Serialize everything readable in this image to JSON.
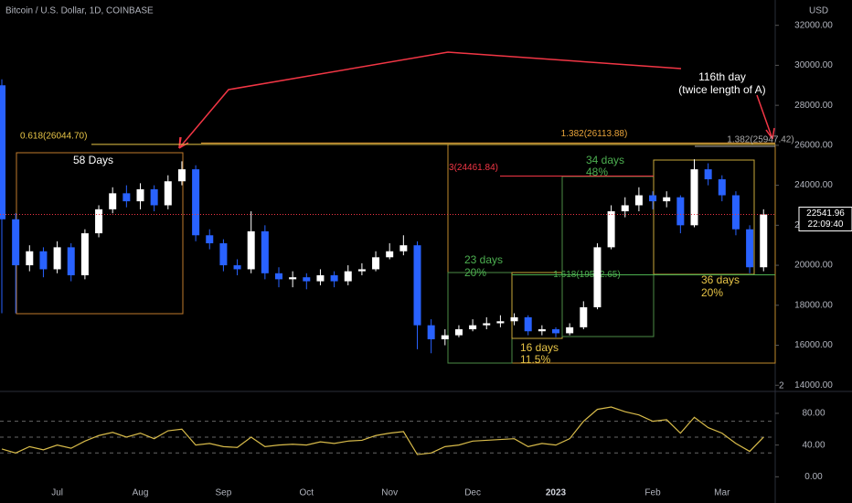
{
  "chart_data": [
    {
      "type": "candlestick",
      "title": "Bitcoin / U.S. Dollar, 1D, COINBASE",
      "currency": "USD",
      "categories": [
        null,
        null,
        null,
        null,
        "Jul",
        null,
        null,
        null,
        null,
        null,
        "Aug",
        null,
        null,
        null,
        null,
        null,
        "Sep",
        null,
        null,
        null,
        null,
        null,
        "Oct",
        null,
        null,
        null,
        null,
        null,
        "Nov",
        null,
        null,
        null,
        null,
        null,
        "Dec",
        null,
        null,
        null,
        null,
        null,
        "2023",
        null,
        null,
        null,
        null,
        null,
        null,
        "Feb",
        null,
        null,
        null,
        null,
        "Mar",
        null,
        null,
        null
      ],
      "open": [
        29000,
        22300,
        20000,
        20700,
        19800,
        20900,
        19500,
        21600,
        22800,
        23600,
        23200,
        23800,
        23000,
        24200,
        24800,
        21500,
        21100,
        20000,
        19800,
        21700,
        19600,
        19300,
        19400,
        19200,
        19500,
        19200,
        19700,
        19800,
        20400,
        20700,
        21000,
        17000,
        16300,
        16500,
        16800,
        17000,
        17100,
        17200,
        17400,
        16700,
        16800,
        16600,
        16900,
        17900,
        20900,
        22700,
        23000,
        23500,
        23200,
        23400,
        22000,
        24800,
        24300,
        23500,
        21800,
        19900
      ],
      "high": [
        29300,
        22600,
        21000,
        20900,
        21200,
        21100,
        21800,
        23000,
        23900,
        24000,
        24100,
        24000,
        24500,
        25200,
        25000,
        21800,
        21300,
        20300,
        22700,
        22000,
        19900,
        19700,
        19600,
        19800,
        19700,
        20000,
        20100,
        20700,
        21100,
        21500,
        21200,
        17300,
        16800,
        17000,
        17300,
        17400,
        17500,
        17600,
        17500,
        17000,
        16900,
        17100,
        18200,
        21100,
        23000,
        23400,
        23900,
        23700,
        23700,
        23500,
        25300,
        25100,
        24500,
        23700,
        22000,
        22800
      ],
      "low": [
        17600,
        17600,
        19700,
        19400,
        19600,
        19200,
        19300,
        21400,
        22600,
        22900,
        22800,
        22700,
        22800,
        24000,
        21200,
        20800,
        19700,
        19500,
        19600,
        19300,
        18900,
        18900,
        18800,
        19000,
        18900,
        19000,
        19500,
        19700,
        20300,
        20500,
        15800,
        15600,
        16000,
        16400,
        16700,
        16800,
        16900,
        17000,
        16500,
        16500,
        16400,
        16500,
        16800,
        17800,
        20800,
        22400,
        22700,
        22800,
        22900,
        21600,
        21900,
        24000,
        23200,
        21500,
        19600,
        19700
      ],
      "close": [
        22300,
        20000,
        20700,
        19800,
        20900,
        19500,
        21600,
        22800,
        23600,
        23200,
        23800,
        23000,
        24200,
        24800,
        21500,
        21100,
        20000,
        19800,
        21700,
        19600,
        19300,
        19400,
        19200,
        19500,
        19200,
        19700,
        19800,
        20400,
        20700,
        21000,
        17000,
        16300,
        16500,
        16800,
        17000,
        17100,
        17200,
        17400,
        16700,
        16800,
        16600,
        16900,
        17900,
        20900,
        22700,
        23000,
        23500,
        23200,
        23400,
        22000,
        24800,
        24300,
        23500,
        21800,
        19900,
        22541.96
      ],
      "up_color": "#ffffff",
      "down_color": "#2962ff",
      "ylim": [
        13600,
        32900
      ],
      "yticks": [
        {
          "value": 14000,
          "label": "14000.00"
        },
        {
          "value": 16000,
          "label": "16000.00"
        },
        {
          "value": 18000,
          "label": "18000.00"
        },
        {
          "value": 20000,
          "label": "20000.00"
        },
        {
          "value": 22000,
          "label": "22000.00"
        },
        {
          "value": 24000,
          "label": "24000.00"
        },
        {
          "value": 26000,
          "label": "26000.00"
        },
        {
          "value": 28000,
          "label": "28000.00"
        },
        {
          "value": 30000,
          "label": "30000.00"
        },
        {
          "value": 32000,
          "label": "32000.00"
        }
      ],
      "levels": [
        {
          "value": 26044.7,
          "label": "0.618(26044.70)"
        },
        {
          "value": 26113.88,
          "label": "1.382(26113.88)"
        },
        {
          "value": 25947.42,
          "label": "1.382(25947.42)"
        },
        {
          "value": 24461.84,
          "label": "3(24461.84)"
        },
        {
          "value": 19522.65,
          "label": "1.618(19522.65)"
        }
      ],
      "countdown": "22:09:40",
      "pane_badge": "2",
      "annotations": [
        "58 Days",
        "23 days",
        "20%",
        "34 days",
        "48%",
        "16 days",
        "11.5%",
        "36 days",
        "20%",
        "116th day",
        "(twice length of A)"
      ]
    },
    {
      "type": "line",
      "values": [
        35,
        30,
        38,
        34,
        40,
        36,
        45,
        52,
        56,
        50,
        55,
        48,
        58,
        60,
        40,
        42,
        38,
        37,
        50,
        38,
        40,
        41,
        40,
        44,
        42,
        45,
        46,
        52,
        55,
        57,
        28,
        30,
        38,
        40,
        45,
        46,
        47,
        48,
        38,
        42,
        40,
        48,
        70,
        85,
        88,
        82,
        78,
        70,
        72,
        55,
        75,
        62,
        55,
        42,
        32,
        50
      ],
      "color": "#d8bb4a",
      "bands": [
        70,
        50,
        30
      ],
      "ylim": [
        -10,
        103
      ],
      "yticks": [
        {
          "value": 0,
          "label": "0.00"
        },
        {
          "value": 40,
          "label": "40.00"
        },
        {
          "value": 80,
          "label": "80.00"
        }
      ]
    }
  ]
}
